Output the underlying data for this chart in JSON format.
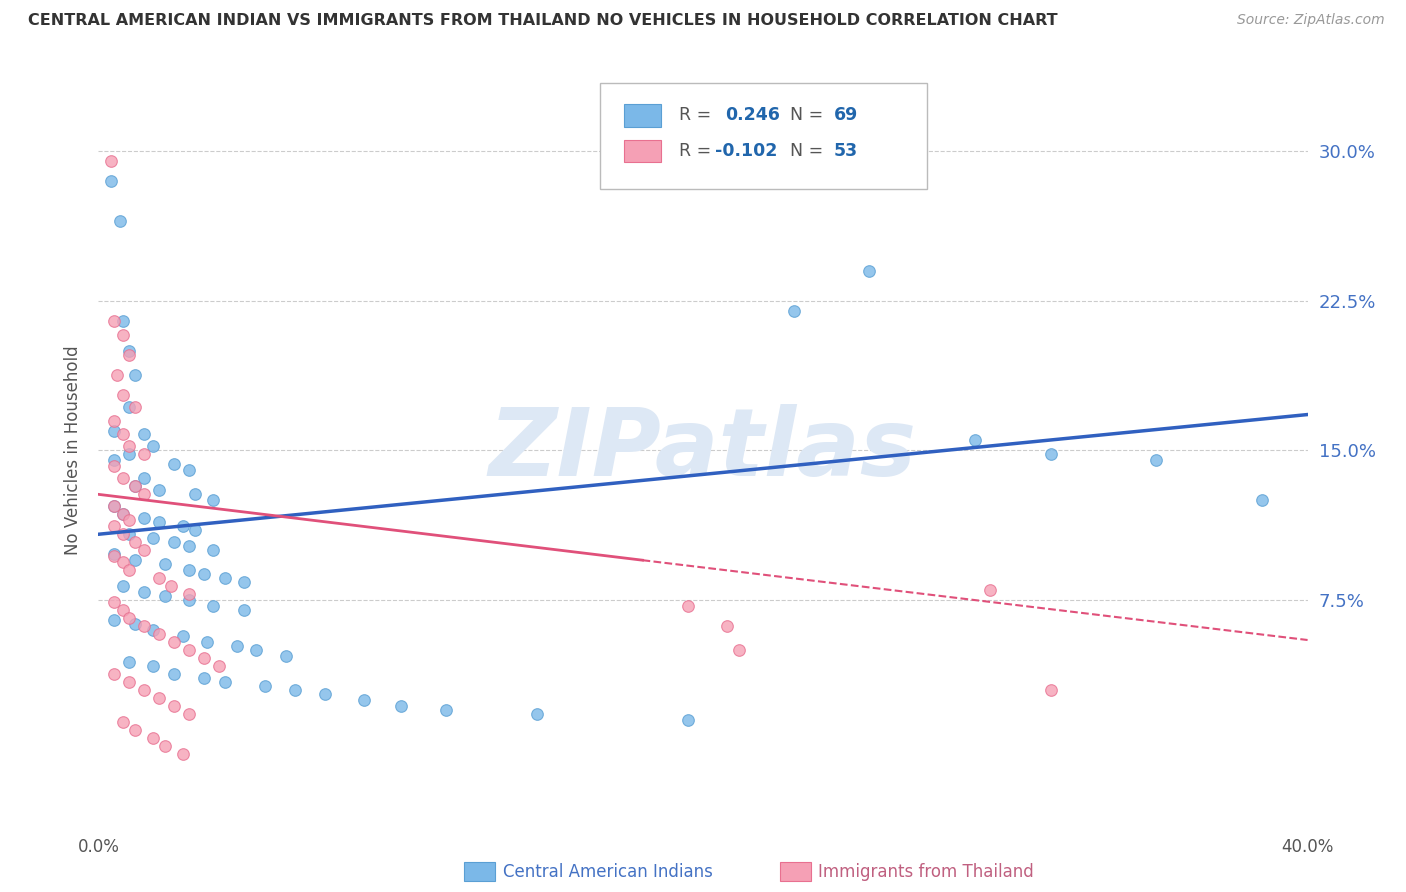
{
  "title": "CENTRAL AMERICAN INDIAN VS IMMIGRANTS FROM THAILAND NO VEHICLES IN HOUSEHOLD CORRELATION CHART",
  "source": "Source: ZipAtlas.com",
  "ylabel": "No Vehicles in Household",
  "ytick_vals": [
    0.075,
    0.15,
    0.225,
    0.3
  ],
  "ytick_labels": [
    "7.5%",
    "15.0%",
    "22.5%",
    "30.0%"
  ],
  "xlim": [
    0.0,
    0.4
  ],
  "ylim": [
    -0.04,
    0.34
  ],
  "series1_color": "#7bb8e8",
  "series2_color": "#f5a0b5",
  "series1_edge": "#5a9fd4",
  "series2_edge": "#e87090",
  "trendline1_color": "#3060c0",
  "trendline2_color": "#e0507a",
  "watermark_color": "#dde8f5",
  "trendline1": [
    [
      0.0,
      0.108
    ],
    [
      0.4,
      0.168
    ]
  ],
  "trendline2_solid": [
    [
      0.0,
      0.128
    ],
    [
      0.18,
      0.095
    ]
  ],
  "trendline2_dash": [
    [
      0.18,
      0.095
    ],
    [
      0.4,
      0.055
    ]
  ],
  "blue_scatter": [
    [
      0.004,
      0.285
    ],
    [
      0.007,
      0.265
    ],
    [
      0.008,
      0.215
    ],
    [
      0.01,
      0.2
    ],
    [
      0.012,
      0.188
    ],
    [
      0.01,
      0.172
    ],
    [
      0.005,
      0.16
    ],
    [
      0.015,
      0.158
    ],
    [
      0.018,
      0.152
    ],
    [
      0.01,
      0.148
    ],
    [
      0.005,
      0.145
    ],
    [
      0.025,
      0.143
    ],
    [
      0.03,
      0.14
    ],
    [
      0.015,
      0.136
    ],
    [
      0.012,
      0.132
    ],
    [
      0.02,
      0.13
    ],
    [
      0.032,
      0.128
    ],
    [
      0.038,
      0.125
    ],
    [
      0.005,
      0.122
    ],
    [
      0.008,
      0.118
    ],
    [
      0.015,
      0.116
    ],
    [
      0.02,
      0.114
    ],
    [
      0.028,
      0.112
    ],
    [
      0.032,
      0.11
    ],
    [
      0.01,
      0.108
    ],
    [
      0.018,
      0.106
    ],
    [
      0.025,
      0.104
    ],
    [
      0.03,
      0.102
    ],
    [
      0.038,
      0.1
    ],
    [
      0.005,
      0.098
    ],
    [
      0.012,
      0.095
    ],
    [
      0.022,
      0.093
    ],
    [
      0.03,
      0.09
    ],
    [
      0.035,
      0.088
    ],
    [
      0.042,
      0.086
    ],
    [
      0.048,
      0.084
    ],
    [
      0.008,
      0.082
    ],
    [
      0.015,
      0.079
    ],
    [
      0.022,
      0.077
    ],
    [
      0.03,
      0.075
    ],
    [
      0.038,
      0.072
    ],
    [
      0.048,
      0.07
    ],
    [
      0.005,
      0.065
    ],
    [
      0.012,
      0.063
    ],
    [
      0.018,
      0.06
    ],
    [
      0.028,
      0.057
    ],
    [
      0.036,
      0.054
    ],
    [
      0.046,
      0.052
    ],
    [
      0.052,
      0.05
    ],
    [
      0.062,
      0.047
    ],
    [
      0.01,
      0.044
    ],
    [
      0.018,
      0.042
    ],
    [
      0.025,
      0.038
    ],
    [
      0.035,
      0.036
    ],
    [
      0.042,
      0.034
    ],
    [
      0.055,
      0.032
    ],
    [
      0.065,
      0.03
    ],
    [
      0.075,
      0.028
    ],
    [
      0.088,
      0.025
    ],
    [
      0.1,
      0.022
    ],
    [
      0.115,
      0.02
    ],
    [
      0.145,
      0.018
    ],
    [
      0.195,
      0.015
    ],
    [
      0.23,
      0.22
    ],
    [
      0.255,
      0.24
    ],
    [
      0.29,
      0.155
    ],
    [
      0.315,
      0.148
    ],
    [
      0.35,
      0.145
    ],
    [
      0.385,
      0.125
    ]
  ],
  "pink_scatter": [
    [
      0.004,
      0.295
    ],
    [
      0.005,
      0.215
    ],
    [
      0.008,
      0.208
    ],
    [
      0.01,
      0.198
    ],
    [
      0.006,
      0.188
    ],
    [
      0.008,
      0.178
    ],
    [
      0.012,
      0.172
    ],
    [
      0.005,
      0.165
    ],
    [
      0.008,
      0.158
    ],
    [
      0.01,
      0.152
    ],
    [
      0.015,
      0.148
    ],
    [
      0.005,
      0.142
    ],
    [
      0.008,
      0.136
    ],
    [
      0.012,
      0.132
    ],
    [
      0.015,
      0.128
    ],
    [
      0.005,
      0.122
    ],
    [
      0.008,
      0.118
    ],
    [
      0.01,
      0.115
    ],
    [
      0.005,
      0.112
    ],
    [
      0.008,
      0.108
    ],
    [
      0.012,
      0.104
    ],
    [
      0.015,
      0.1
    ],
    [
      0.005,
      0.097
    ],
    [
      0.008,
      0.094
    ],
    [
      0.01,
      0.09
    ],
    [
      0.02,
      0.086
    ],
    [
      0.024,
      0.082
    ],
    [
      0.03,
      0.078
    ],
    [
      0.005,
      0.074
    ],
    [
      0.008,
      0.07
    ],
    [
      0.01,
      0.066
    ],
    [
      0.015,
      0.062
    ],
    [
      0.02,
      0.058
    ],
    [
      0.025,
      0.054
    ],
    [
      0.03,
      0.05
    ],
    [
      0.035,
      0.046
    ],
    [
      0.04,
      0.042
    ],
    [
      0.005,
      0.038
    ],
    [
      0.01,
      0.034
    ],
    [
      0.015,
      0.03
    ],
    [
      0.02,
      0.026
    ],
    [
      0.025,
      0.022
    ],
    [
      0.03,
      0.018
    ],
    [
      0.008,
      0.014
    ],
    [
      0.012,
      0.01
    ],
    [
      0.018,
      0.006
    ],
    [
      0.022,
      0.002
    ],
    [
      0.028,
      -0.002
    ],
    [
      0.195,
      0.072
    ],
    [
      0.208,
      0.062
    ],
    [
      0.212,
      0.05
    ],
    [
      0.295,
      0.08
    ],
    [
      0.315,
      0.03
    ]
  ]
}
